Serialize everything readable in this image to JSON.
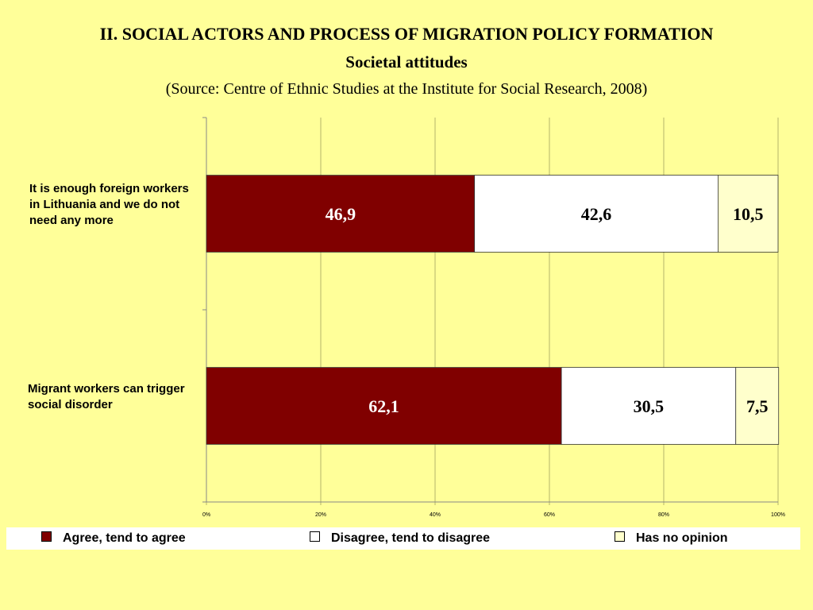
{
  "title": "II. SOCIAL ACTORS AND PROCESS OF MIGRATION POLICY FORMATION",
  "subtitle": "Societal attitudes",
  "source": "(Source: Centre of Ethnic Studies at the Institute for Social Research, 2008)",
  "chart_data": {
    "type": "bar",
    "orientation": "horizontal",
    "stacked": "percent",
    "categories": [
      "It is enough foreign workers in Lithuania and we do not need any more",
      "Migrant workers can trigger social disorder"
    ],
    "series": [
      {
        "name": "Agree, tend to agree",
        "values": [
          46.9,
          62.1
        ],
        "labels": [
          "46,9",
          "62,1"
        ],
        "color": "#800000",
        "label_color": "#FFFFFF"
      },
      {
        "name": "Disagree, tend to disagree",
        "values": [
          42.6,
          30.5
        ],
        "labels": [
          "42,6",
          "30,5"
        ],
        "color": "#FFFFFF",
        "label_color": "#000000"
      },
      {
        "name": "Has no opinion",
        "values": [
          10.5,
          7.5
        ],
        "labels": [
          "10,5",
          "7,5"
        ],
        "color": "#FFFFCC",
        "label_color": "#000000"
      }
    ],
    "xlim": [
      0,
      100
    ],
    "xticks": [
      "0%",
      "20%",
      "40%",
      "60%",
      "80%",
      "100%"
    ],
    "grid": true,
    "legend": "bottom"
  }
}
